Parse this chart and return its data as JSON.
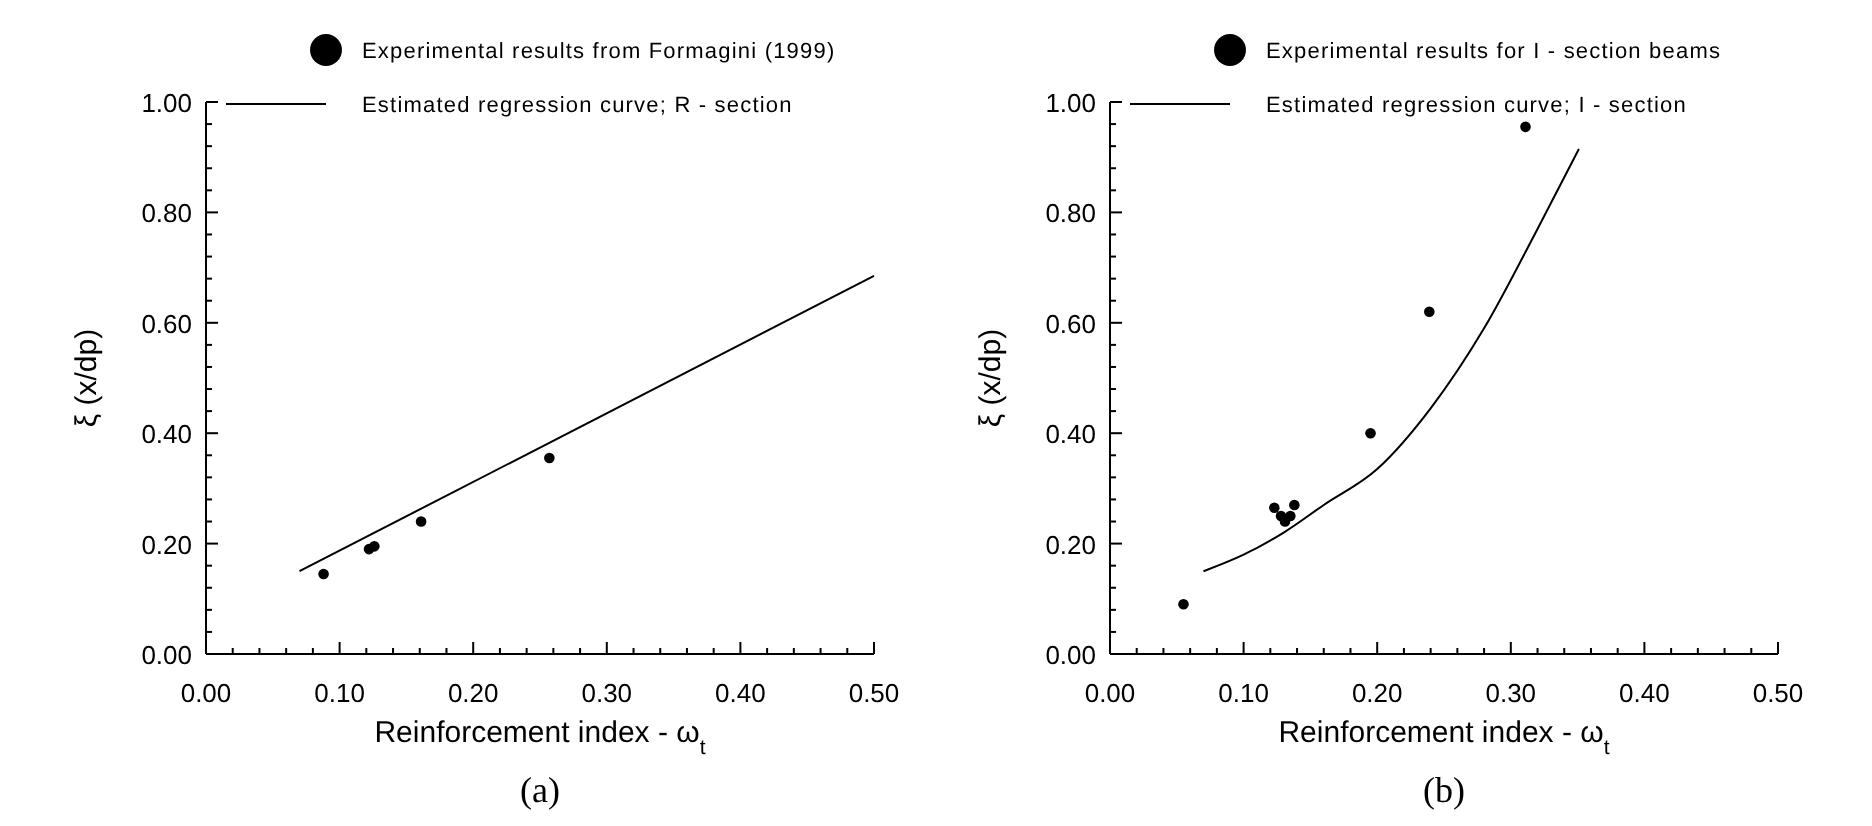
{
  "chart_data": [
    {
      "type": "scatter",
      "xlabel": "Reinforcement index - ω$_{t}$",
      "ylabel": "ξ (x/dp)",
      "annotations": [
        "(a)"
      ],
      "legend": "top",
      "marker": "circle",
      "grid": false,
      "xlim": [
        0,
        0.5
      ],
      "ylim": [
        0,
        1
      ],
      "xticks": [
        {
          "value": 0,
          "label": "0.00"
        },
        {
          "value": 0.02,
          "label": null
        },
        {
          "value": 0.04,
          "label": null
        },
        {
          "value": 0.06,
          "label": null
        },
        {
          "value": 0.08,
          "label": null
        },
        {
          "value": 0.1,
          "label": "0.10"
        },
        {
          "value": 0.12,
          "label": null
        },
        {
          "value": 0.14,
          "label": null
        },
        {
          "value": 0.16,
          "label": null
        },
        {
          "value": 0.18,
          "label": null
        },
        {
          "value": 0.2,
          "label": "0.20"
        },
        {
          "value": 0.22,
          "label": null
        },
        {
          "value": 0.24,
          "label": null
        },
        {
          "value": 0.26,
          "label": null
        },
        {
          "value": 0.28,
          "label": null
        },
        {
          "value": 0.3,
          "label": "0.30"
        },
        {
          "value": 0.32,
          "label": null
        },
        {
          "value": 0.34,
          "label": null
        },
        {
          "value": 0.36,
          "label": null
        },
        {
          "value": 0.38,
          "label": null
        },
        {
          "value": 0.4,
          "label": "0.40"
        },
        {
          "value": 0.42,
          "label": null
        },
        {
          "value": 0.44,
          "label": null
        },
        {
          "value": 0.46,
          "label": null
        },
        {
          "value": 0.48,
          "label": null
        },
        {
          "value": 0.5,
          "label": "0.50"
        }
      ],
      "yticks": [
        {
          "value": 0,
          "label": "0.00"
        },
        {
          "value": 0.04,
          "label": null
        },
        {
          "value": 0.08,
          "label": null
        },
        {
          "value": 0.12,
          "label": null
        },
        {
          "value": 0.16,
          "label": null
        },
        {
          "value": 0.2,
          "label": "0.20"
        },
        {
          "value": 0.24,
          "label": null
        },
        {
          "value": 0.28,
          "label": null
        },
        {
          "value": 0.32,
          "label": null
        },
        {
          "value": 0.36,
          "label": null
        },
        {
          "value": 0.4,
          "label": "0.40"
        },
        {
          "value": 0.44,
          "label": null
        },
        {
          "value": 0.48,
          "label": null
        },
        {
          "value": 0.52,
          "label": null
        },
        {
          "value": 0.56,
          "label": null
        },
        {
          "value": 0.6,
          "label": "0.60"
        },
        {
          "value": 0.64,
          "label": null
        },
        {
          "value": 0.68,
          "label": null
        },
        {
          "value": 0.72,
          "label": null
        },
        {
          "value": 0.76,
          "label": null
        },
        {
          "value": 0.8,
          "label": "0.80"
        },
        {
          "value": 0.84,
          "label": null
        },
        {
          "value": 0.88,
          "label": null
        },
        {
          "value": 0.92,
          "label": null
        },
        {
          "value": 0.96,
          "label": null
        },
        {
          "value": 1,
          "label": "1.00"
        }
      ],
      "series": [
        {
          "name": "Experimental results from Formagini (1999)",
          "color": "#000000",
          "x": [
            0.088,
            0.122,
            0.126,
            0.161,
            0.257
          ],
          "values": [
            0.145,
            0.19,
            0.195,
            0.24,
            0.355
          ]
        },
        {
          "name": "Estimated regression curve; R - section",
          "type": "line",
          "marker": "none",
          "color": "#000000",
          "x": [
            0.07,
            0.5
          ],
          "values": [
            0.15,
            0.685
          ]
        }
      ]
    },
    {
      "type": "scatter",
      "xlabel": "Reinforcement index - ω$_{t}$",
      "ylabel": "ξ (x/dp)",
      "annotations": [
        "(b)"
      ],
      "legend": "top",
      "marker": "circle",
      "grid": false,
      "xlim": [
        0,
        0.5
      ],
      "ylim": [
        0,
        1
      ],
      "xticks": [
        {
          "value": 0,
          "label": "0.00"
        },
        {
          "value": 0.02,
          "label": null
        },
        {
          "value": 0.04,
          "label": null
        },
        {
          "value": 0.06,
          "label": null
        },
        {
          "value": 0.08,
          "label": null
        },
        {
          "value": 0.1,
          "label": "0.10"
        },
        {
          "value": 0.12,
          "label": null
        },
        {
          "value": 0.14,
          "label": null
        },
        {
          "value": 0.16,
          "label": null
        },
        {
          "value": 0.18,
          "label": null
        },
        {
          "value": 0.2,
          "label": "0.20"
        },
        {
          "value": 0.22,
          "label": null
        },
        {
          "value": 0.24,
          "label": null
        },
        {
          "value": 0.26,
          "label": null
        },
        {
          "value": 0.28,
          "label": null
        },
        {
          "value": 0.3,
          "label": "0.30"
        },
        {
          "value": 0.32,
          "label": null
        },
        {
          "value": 0.34,
          "label": null
        },
        {
          "value": 0.36,
          "label": null
        },
        {
          "value": 0.38,
          "label": null
        },
        {
          "value": 0.4,
          "label": "0.40"
        },
        {
          "value": 0.42,
          "label": null
        },
        {
          "value": 0.44,
          "label": null
        },
        {
          "value": 0.46,
          "label": null
        },
        {
          "value": 0.48,
          "label": null
        },
        {
          "value": 0.5,
          "label": "0.50"
        }
      ],
      "yticks": [
        {
          "value": 0,
          "label": "0.00"
        },
        {
          "value": 0.04,
          "label": null
        },
        {
          "value": 0.08,
          "label": null
        },
        {
          "value": 0.12,
          "label": null
        },
        {
          "value": 0.16,
          "label": null
        },
        {
          "value": 0.2,
          "label": "0.20"
        },
        {
          "value": 0.24,
          "label": null
        },
        {
          "value": 0.28,
          "label": null
        },
        {
          "value": 0.32,
          "label": null
        },
        {
          "value": 0.36,
          "label": null
        },
        {
          "value": 0.4,
          "label": "0.40"
        },
        {
          "value": 0.44,
          "label": null
        },
        {
          "value": 0.48,
          "label": null
        },
        {
          "value": 0.52,
          "label": null
        },
        {
          "value": 0.56,
          "label": null
        },
        {
          "value": 0.6,
          "label": "0.60"
        },
        {
          "value": 0.64,
          "label": null
        },
        {
          "value": 0.68,
          "label": null
        },
        {
          "value": 0.72,
          "label": null
        },
        {
          "value": 0.76,
          "label": null
        },
        {
          "value": 0.8,
          "label": "0.80"
        },
        {
          "value": 0.84,
          "label": null
        },
        {
          "value": 0.88,
          "label": null
        },
        {
          "value": 0.92,
          "label": null
        },
        {
          "value": 0.96,
          "label": null
        },
        {
          "value": 1,
          "label": "1.00"
        }
      ],
      "series": [
        {
          "name": "Experimental results for I - section beams",
          "color": "#000000",
          "x": [
            0.055,
            0.123,
            0.128,
            0.131,
            0.135,
            0.138,
            0.195,
            0.239,
            0.311
          ],
          "values": [
            0.09,
            0.265,
            0.25,
            0.24,
            0.25,
            0.27,
            0.4,
            0.62,
            0.955
          ]
        },
        {
          "name": "Estimated regression curve; I - section",
          "type": "line",
          "marker": "none",
          "color": "#000000",
          "x": [
            0.07,
            0.1,
            0.13,
            0.16,
            0.2,
            0.24,
            0.28,
            0.32,
            0.351
          ],
          "values": [
            0.15,
            0.18,
            0.22,
            0.27,
            0.335,
            0.445,
            0.59,
            0.77,
            0.915
          ]
        }
      ]
    }
  ]
}
